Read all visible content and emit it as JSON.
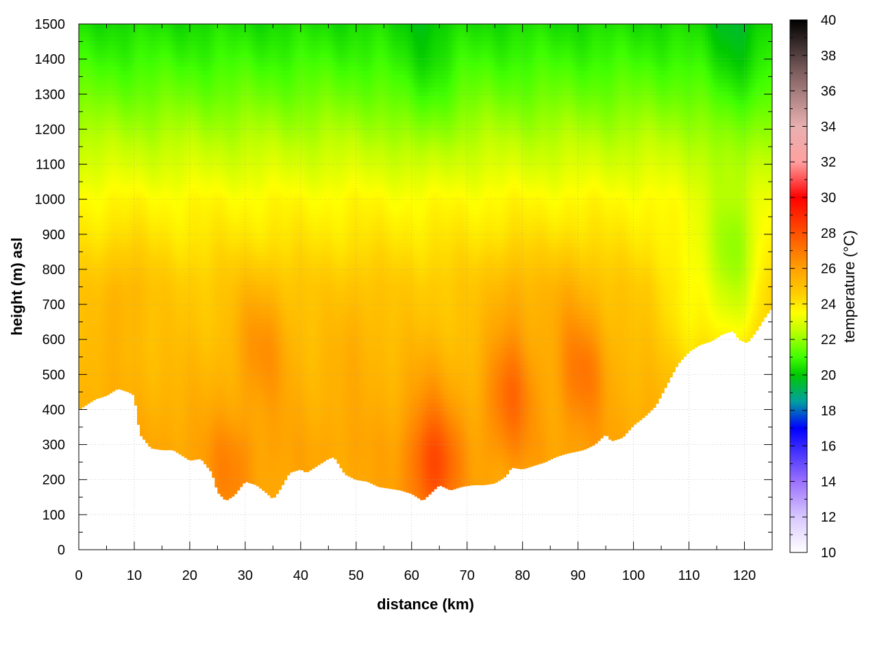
{
  "chart_data": {
    "type": "heatmap",
    "subtype": "filled-contour cross-section",
    "title": "",
    "xlabel": "distance (km)",
    "ylabel": "height (m) asl",
    "colorbar_label": "temperature (°C)",
    "xlim": [
      0,
      125
    ],
    "ylim": [
      0,
      1500
    ],
    "clim": [
      10,
      40
    ],
    "x_ticks": [
      0,
      10,
      20,
      30,
      40,
      50,
      60,
      70,
      80,
      90,
      100,
      110,
      120
    ],
    "y_ticks": [
      0,
      100,
      200,
      300,
      400,
      500,
      600,
      700,
      800,
      900,
      1000,
      1100,
      1200,
      1300,
      1400,
      1500
    ],
    "cb_ticks": [
      10,
      12,
      14,
      16,
      18,
      20,
      22,
      24,
      26,
      28,
      30,
      32,
      34,
      36,
      38,
      40
    ],
    "grid": true,
    "colormap": [
      {
        "t": 10,
        "color": "#ffffff"
      },
      {
        "t": 12,
        "color": "#d8c8ff"
      },
      {
        "t": 14,
        "color": "#9a70ff"
      },
      {
        "t": 17,
        "color": "#0000ff"
      },
      {
        "t": 18.5,
        "color": "#00a0a0"
      },
      {
        "t": 20,
        "color": "#00c800"
      },
      {
        "t": 21,
        "color": "#40ff00"
      },
      {
        "t": 22.5,
        "color": "#c0ff00"
      },
      {
        "t": 23.5,
        "color": "#ffff00"
      },
      {
        "t": 24.5,
        "color": "#ffd000"
      },
      {
        "t": 26,
        "color": "#ffa000"
      },
      {
        "t": 28,
        "color": "#ff5000"
      },
      {
        "t": 30,
        "color": "#ff0000"
      },
      {
        "t": 32,
        "color": "#ffa0a0"
      },
      {
        "t": 34,
        "color": "#e8b0b0"
      },
      {
        "t": 37,
        "color": "#806060"
      },
      {
        "t": 40,
        "color": "#000000"
      }
    ],
    "terrain_base": [
      [
        0,
        400
      ],
      [
        3,
        430
      ],
      [
        5,
        440
      ],
      [
        7,
        460
      ],
      [
        9,
        450
      ],
      [
        10,
        440
      ],
      [
        11,
        330
      ],
      [
        13,
        290
      ],
      [
        15,
        285
      ],
      [
        17,
        285
      ],
      [
        20,
        255
      ],
      [
        22,
        260
      ],
      [
        24,
        220
      ],
      [
        25,
        165
      ],
      [
        26.5,
        140
      ],
      [
        28,
        155
      ],
      [
        30,
        195
      ],
      [
        32,
        185
      ],
      [
        34,
        160
      ],
      [
        35,
        145
      ],
      [
        36,
        165
      ],
      [
        38,
        220
      ],
      [
        40,
        230
      ],
      [
        41,
        220
      ],
      [
        43,
        240
      ],
      [
        45,
        260
      ],
      [
        46,
        265
      ],
      [
        48,
        215
      ],
      [
        50,
        200
      ],
      [
        52,
        195
      ],
      [
        54,
        180
      ],
      [
        56,
        175
      ],
      [
        58,
        170
      ],
      [
        60,
        160
      ],
      [
        62,
        140
      ],
      [
        63,
        155
      ],
      [
        65,
        185
      ],
      [
        67,
        170
      ],
      [
        69,
        180
      ],
      [
        71,
        185
      ],
      [
        73,
        185
      ],
      [
        75,
        190
      ],
      [
        77,
        210
      ],
      [
        78,
        235
      ],
      [
        80,
        230
      ],
      [
        82,
        240
      ],
      [
        84,
        250
      ],
      [
        86,
        265
      ],
      [
        88,
        275
      ],
      [
        91,
        285
      ],
      [
        93,
        300
      ],
      [
        95,
        330
      ],
      [
        96,
        310
      ],
      [
        98,
        320
      ],
      [
        100,
        355
      ],
      [
        102,
        380
      ],
      [
        104,
        410
      ],
      [
        106,
        470
      ],
      [
        108,
        530
      ],
      [
        110,
        565
      ],
      [
        112,
        585
      ],
      [
        114,
        595
      ],
      [
        116,
        615
      ],
      [
        118,
        625
      ],
      [
        119,
        600
      ],
      [
        120.5,
        590
      ],
      [
        122,
        620
      ],
      [
        124,
        670
      ],
      [
        125,
        690
      ]
    ],
    "temperature_profile": {
      "heights": [
        0,
        150,
        300,
        450,
        600,
        750,
        900,
        1000,
        1100,
        1200,
        1300,
        1400,
        1500
      ],
      "temps": [
        25.6,
        25.8,
        25.8,
        25.4,
        25.0,
        24.7,
        24.0,
        23.6,
        22.9,
        22.2,
        21.5,
        20.9,
        20.4
      ]
    },
    "warm_anomalies": [
      {
        "x": 8,
        "y": 730,
        "dt": 0.7
      },
      {
        "x": 32,
        "y": 620,
        "dt": 0.9
      },
      {
        "x": 35,
        "y": 560,
        "dt": 0.6
      },
      {
        "x": 64,
        "y": 230,
        "dt": 2.3
      },
      {
        "x": 63,
        "y": 450,
        "dt": 0.5
      },
      {
        "x": 78,
        "y": 450,
        "dt": 1.8
      },
      {
        "x": 78,
        "y": 700,
        "dt": 0.8
      },
      {
        "x": 91,
        "y": 520,
        "dt": 1.7
      },
      {
        "x": 88,
        "y": 720,
        "dt": 0.7
      },
      {
        "x": 27,
        "y": 220,
        "dt": 0.9
      },
      {
        "x": 50,
        "y": 620,
        "dt": 0.5
      }
    ],
    "cool_anomalies": [
      {
        "x": 118,
        "y": 800,
        "dt": 2.2
      },
      {
        "x": 110,
        "y": 700,
        "dt": 1.0
      },
      {
        "x": 62,
        "y": 1350,
        "dt": 0.6
      },
      {
        "x": 118,
        "y": 1420,
        "dt": 0.8
      }
    ]
  }
}
